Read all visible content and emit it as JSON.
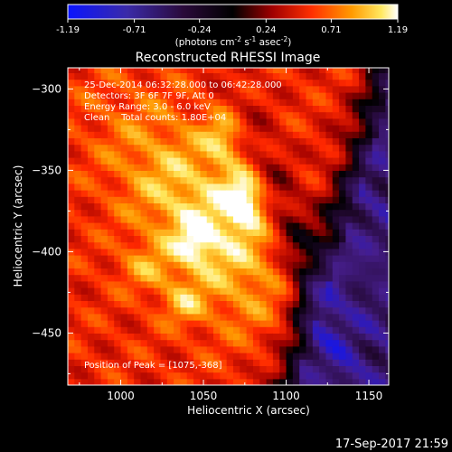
{
  "colorbar": {
    "ticks": [
      "-1.19",
      "-0.71",
      "-0.24",
      "0.24",
      "0.71",
      "1.19"
    ],
    "tick_values": [
      -1.19,
      -0.71,
      -0.24,
      0.24,
      0.71,
      1.19
    ],
    "units_parts": [
      "(photons cm",
      "-2",
      " s",
      "-1",
      " asec",
      "-2",
      ")"
    ],
    "range": [
      -1.19,
      1.19
    ]
  },
  "chart_data": {
    "type": "heatmap",
    "title": "Reconstructed RHESSI Image",
    "xlabel": "Heliocentric X (arcsec)",
    "ylabel": "Heliocentric Y (arcsec)",
    "xlim": [
      968,
      1162
    ],
    "ylim": [
      -482,
      -287
    ],
    "xticks": [
      1000,
      1050,
      1100,
      1150
    ],
    "yticks": [
      -300,
      -350,
      -400,
      -450
    ],
    "xtick_labels": [
      "1000",
      "1050",
      "1100",
      "1150"
    ],
    "ytick_labels": [
      "−300",
      "−350",
      "−400",
      "−450"
    ],
    "peak": [
      1075,
      -368
    ],
    "colormap": [
      "#2020ff",
      "#4b1a7a",
      "#000000",
      "#c00000",
      "#ff6000",
      "#ffd040",
      "#ffffff"
    ],
    "info_lines": [
      "25-Dec-2014 06:32:28.000 to 06:42:28.000",
      "Detectors: 3F 6F 7F 9F, Att 0",
      "Energy Range: 3.0 - 6.0 keV",
      "Clean    Total counts: 1.80E+04"
    ],
    "peak_label": "Position of Peak = [1075,-368]"
  },
  "footer": {
    "timestamp": "17-Sep-2017 21:59"
  }
}
